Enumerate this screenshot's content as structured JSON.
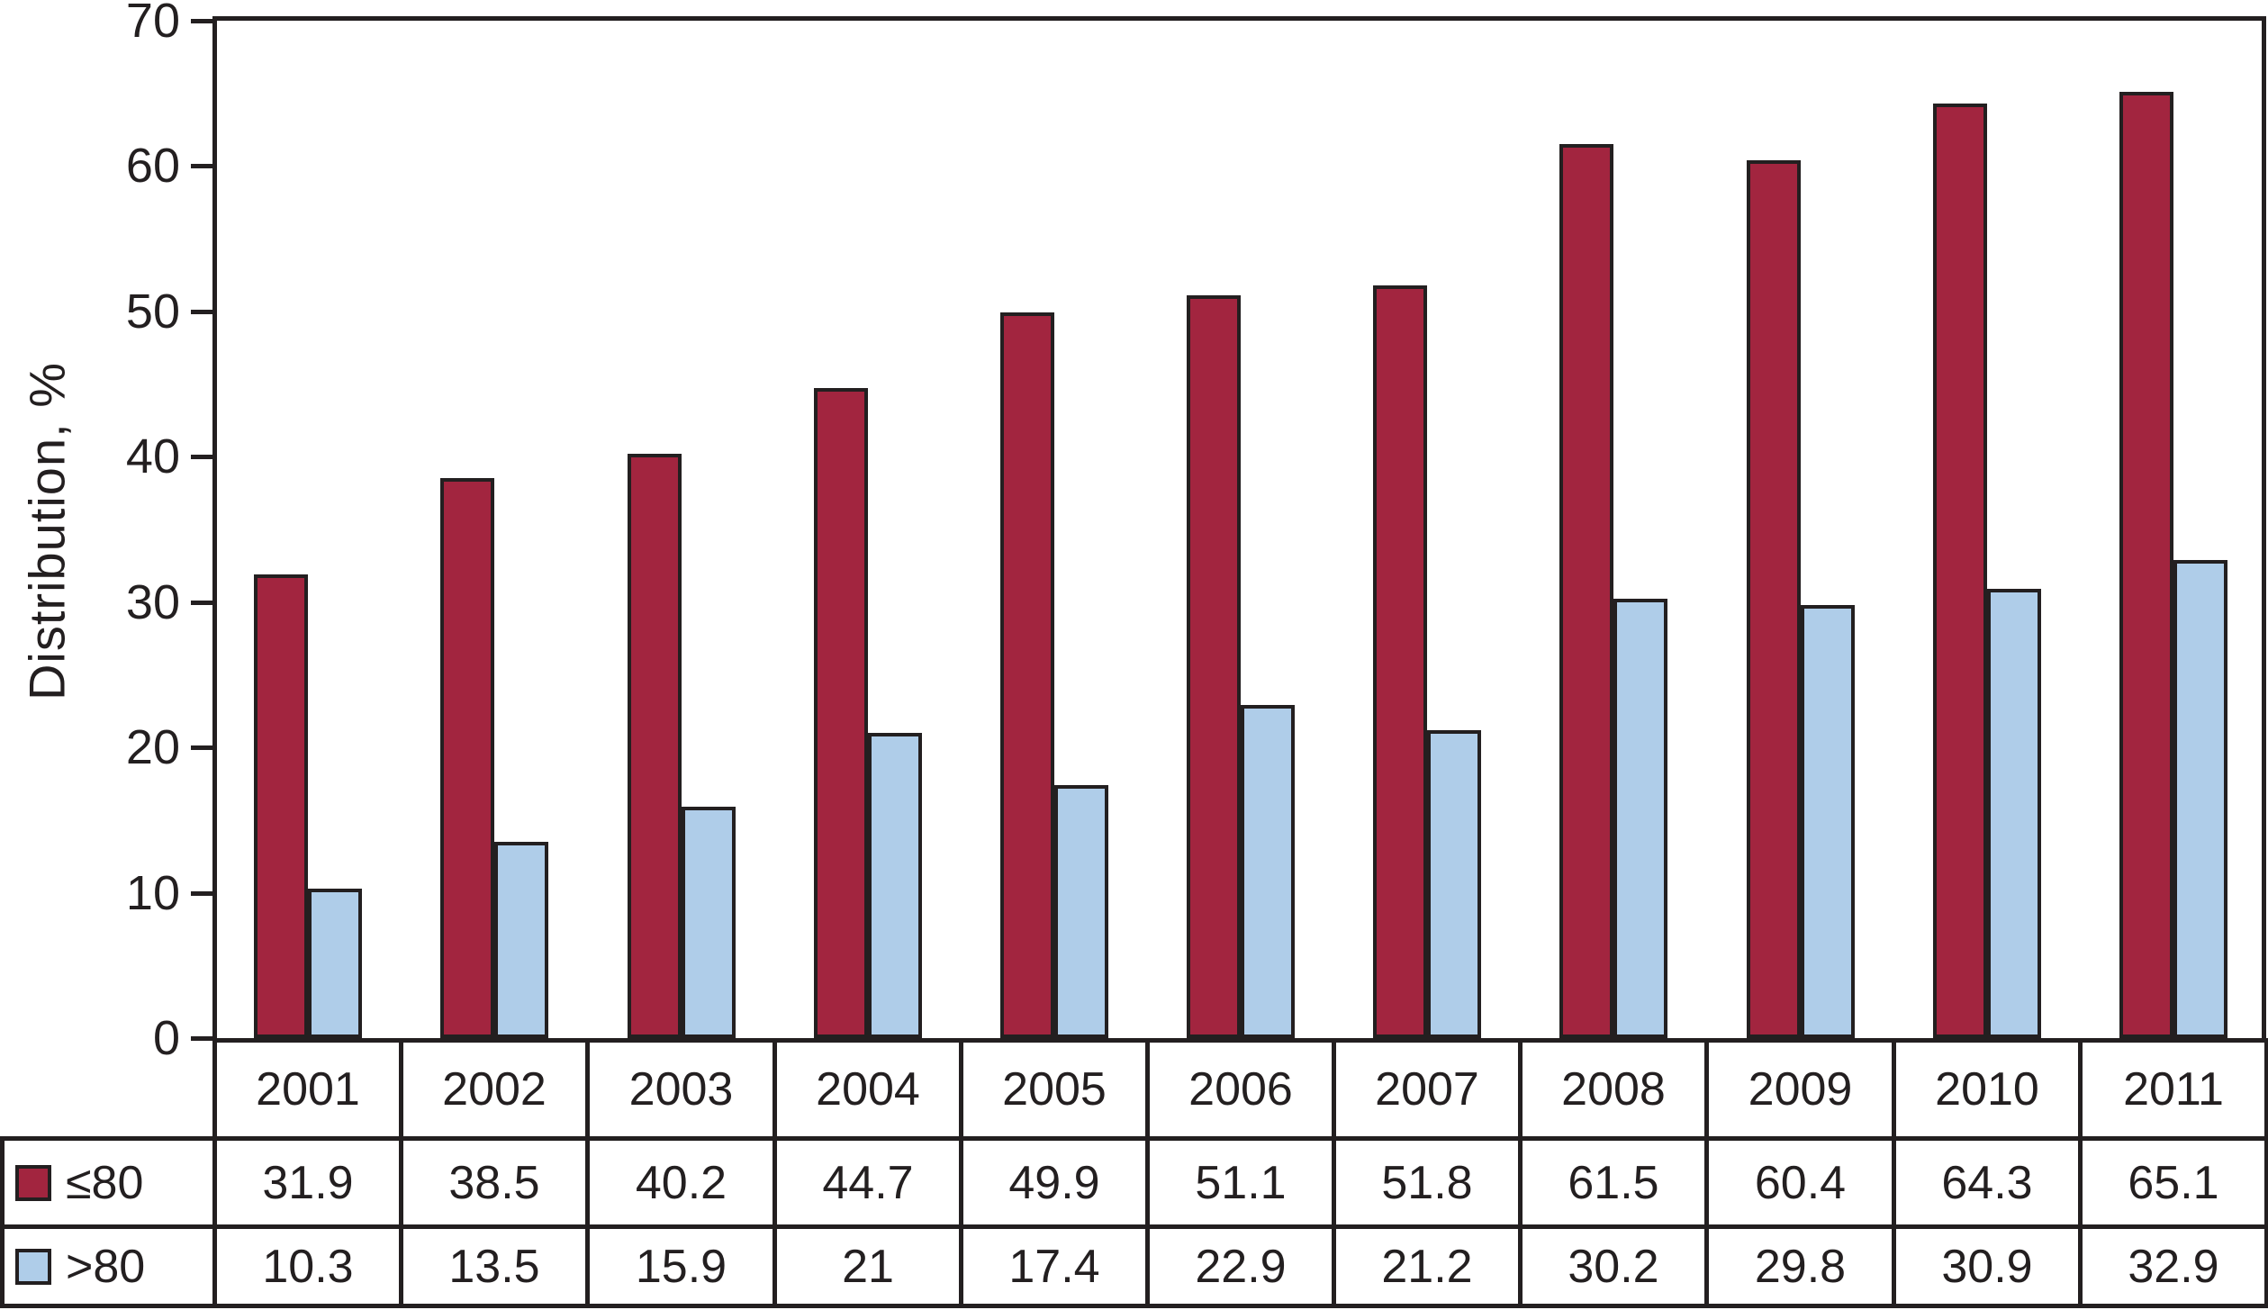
{
  "chart_data": {
    "type": "bar",
    "title": "",
    "xlabel": "",
    "ylabel": "Distribution, %",
    "ylim": [
      0,
      70
    ],
    "ytick_step": 10,
    "grid": false,
    "legend_position": "table-row-headers",
    "axis_color": "#231F20",
    "categories": [
      "2001",
      "2002",
      "2003",
      "2004",
      "2005",
      "2006",
      "2007",
      "2008",
      "2009",
      "2010",
      "2011"
    ],
    "series": [
      {
        "key": "le80",
        "name": "≤80",
        "color": "#A2253F",
        "values": [
          31.9,
          38.5,
          40.2,
          44.7,
          49.9,
          51.1,
          51.8,
          61.5,
          60.4,
          64.3,
          65.1
        ]
      },
      {
        "key": "gt80",
        "name": ">80",
        "color": "#AFCDE9",
        "values": [
          10.3,
          13.5,
          15.9,
          21,
          17.4,
          22.9,
          21.2,
          30.2,
          29.8,
          30.9,
          32.9
        ]
      }
    ]
  }
}
